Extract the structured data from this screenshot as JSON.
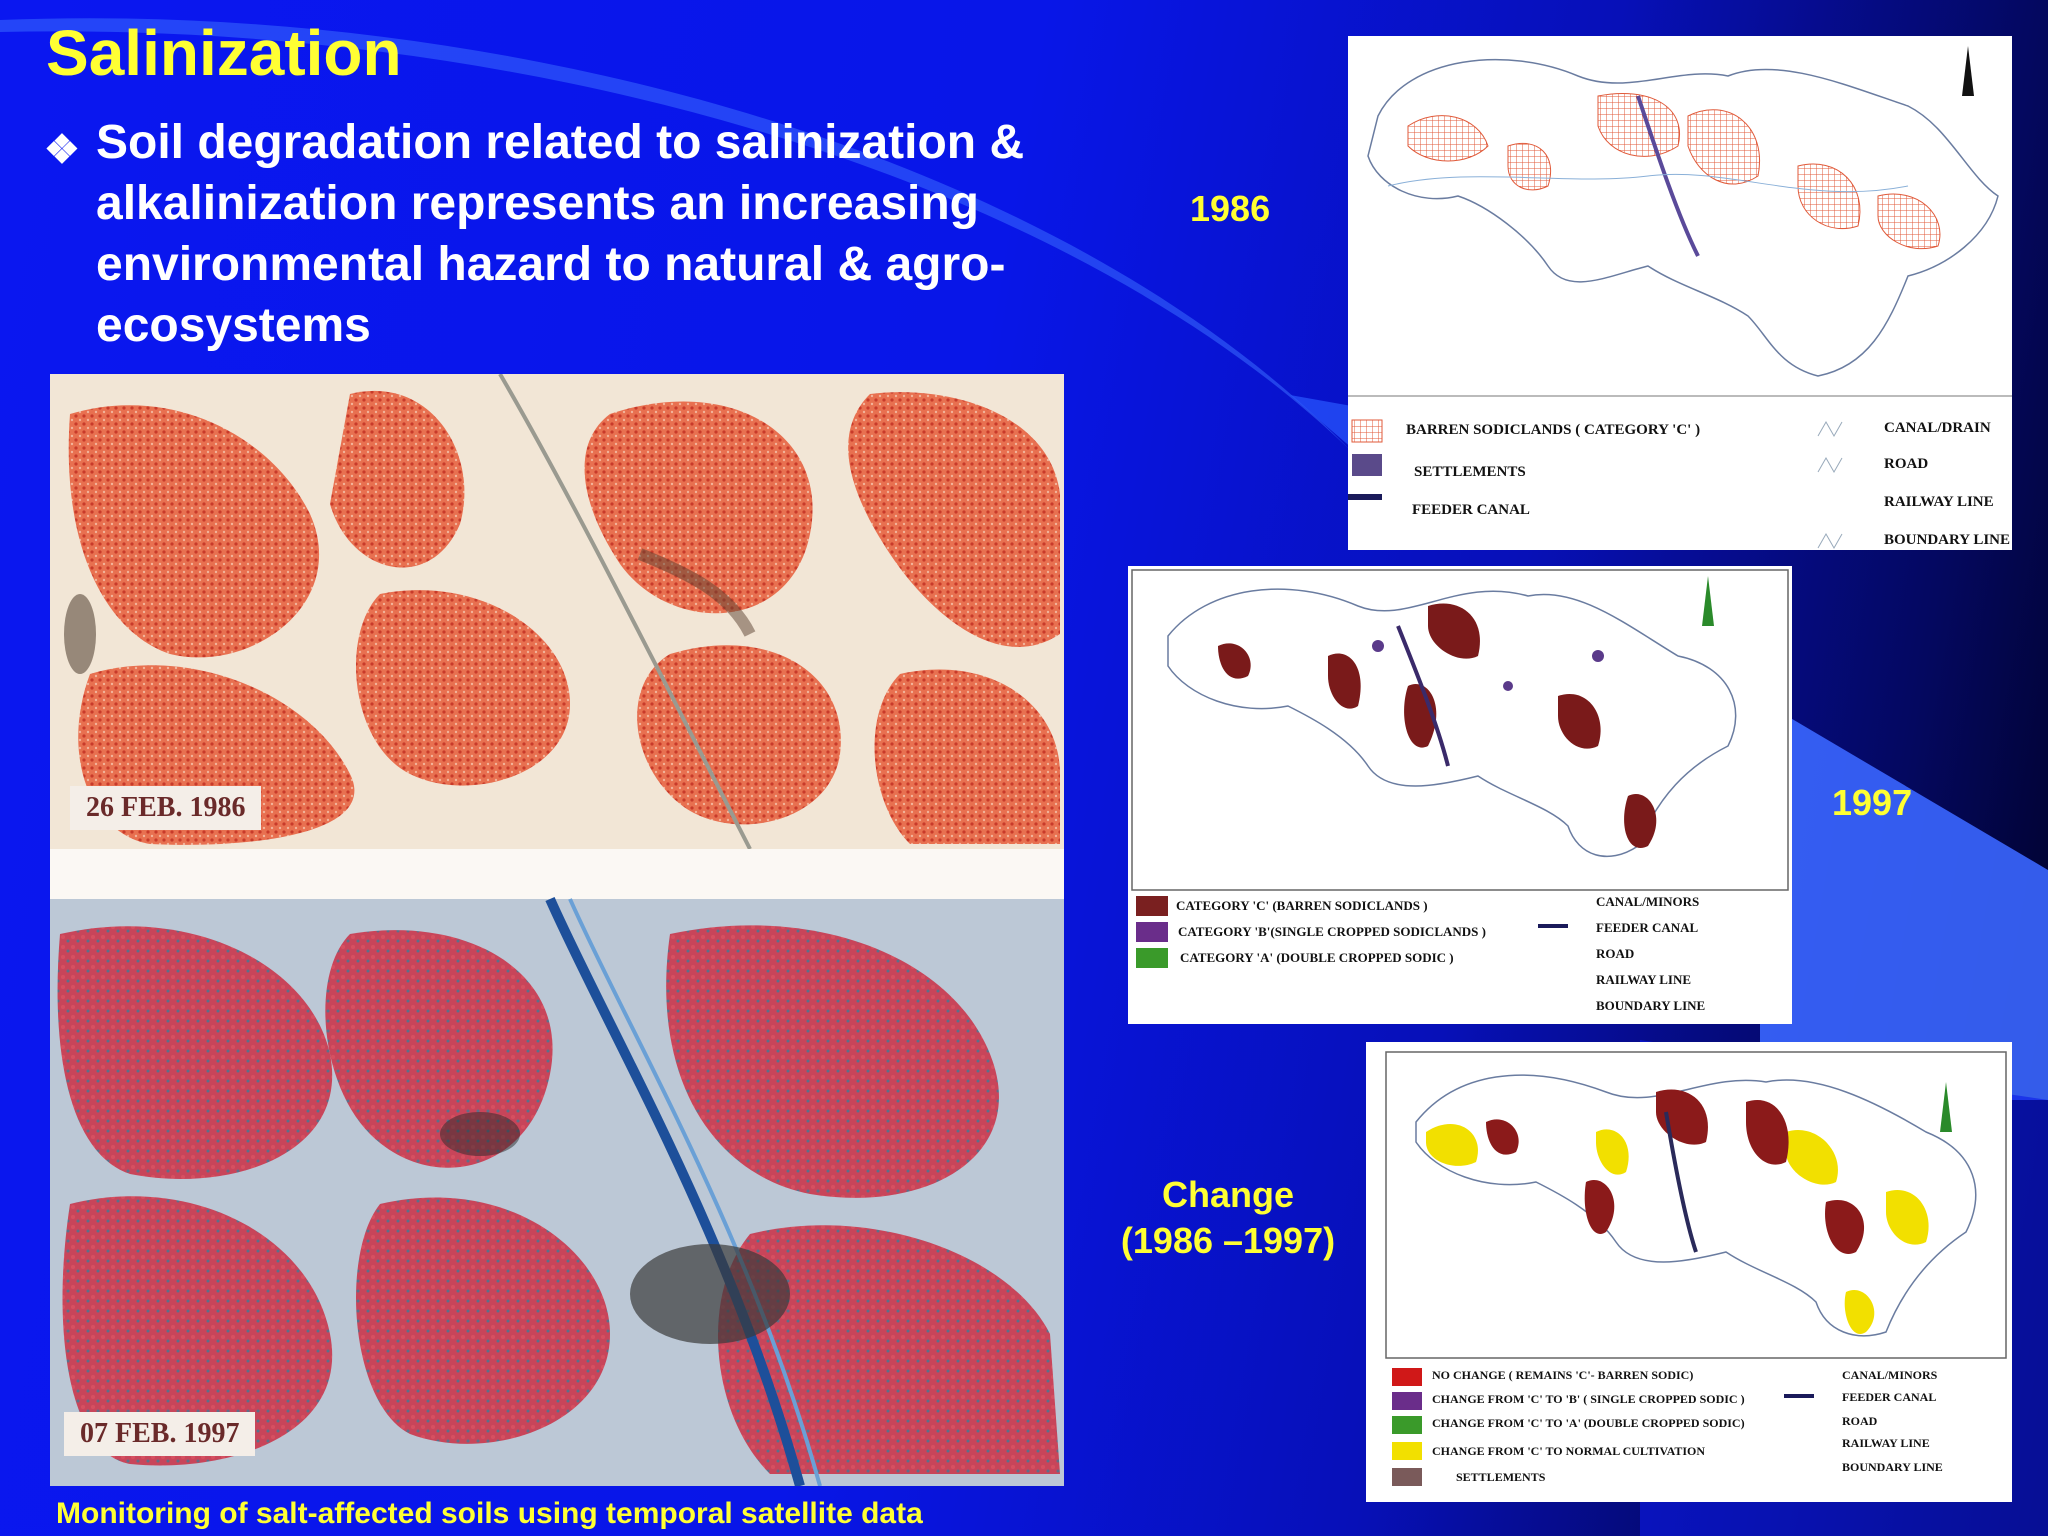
{
  "slide": {
    "title": "Salinization",
    "bullet_icon": "diamond-bullet-icon",
    "bullet_text": "Soil degradation related to salinization & alkalinization represents an increasing environmental hazard to natural & agro-ecosystems",
    "caption_bottom": "Monitoring of salt-affected soils using temporal satellite data"
  },
  "satellite": {
    "label_top": "26 FEB. 1986",
    "label_bottom": "07 FEB. 1997"
  },
  "map1986": {
    "year_label": "1986",
    "legend_left": [
      "BARREN SODICLANDS ( CATEGORY 'C' )",
      "SETTLEMENTS",
      "FEEDER CANAL"
    ],
    "legend_right": [
      "CANAL/DRAIN",
      "ROAD",
      "RAILWAY LINE",
      "BOUNDARY LINE"
    ]
  },
  "map1997": {
    "year_label": "1997",
    "legend_left": [
      "CATEGORY 'C' (BARREN SODICLANDS )",
      "CATEGORY 'B'(SINGLE CROPPED SODICLANDS )",
      "CATEGORY 'A' (DOUBLE CROPPED SODIC )"
    ],
    "legend_right": [
      "CANAL/MINORS",
      "FEEDER CANAL",
      "ROAD",
      "RAILWAY LINE",
      "BOUNDARY LINE"
    ]
  },
  "mapChange": {
    "label_line1": "Change",
    "label_line2": "(1986 –1997)",
    "legend_left": [
      "NO CHANGE ( REMAINS 'C'- BARREN SODIC)",
      "CHANGE FROM 'C' TO 'B' ( SINGLE CROPPED SODIC )",
      "CHANGE FROM 'C' TO 'A' (DOUBLE CROPPED SODIC)",
      "CHANGE FROM 'C' TO NORMAL CULTIVATION",
      "SETTLEMENTS"
    ],
    "legend_right": [
      "CANAL/MINORS",
      "FEEDER CANAL",
      "ROAD",
      "RAILWAY LINE",
      "BOUNDARY LINE"
    ]
  },
  "colors": {
    "title": "#ffff33",
    "background": "#0a17f0",
    "barren": "#8b1a1a",
    "single_cropped": "#6a2d8a",
    "double_cropped": "#3a9a2a",
    "normal_cultivation": "#f2e000",
    "settlement": "#7a5a5a"
  }
}
